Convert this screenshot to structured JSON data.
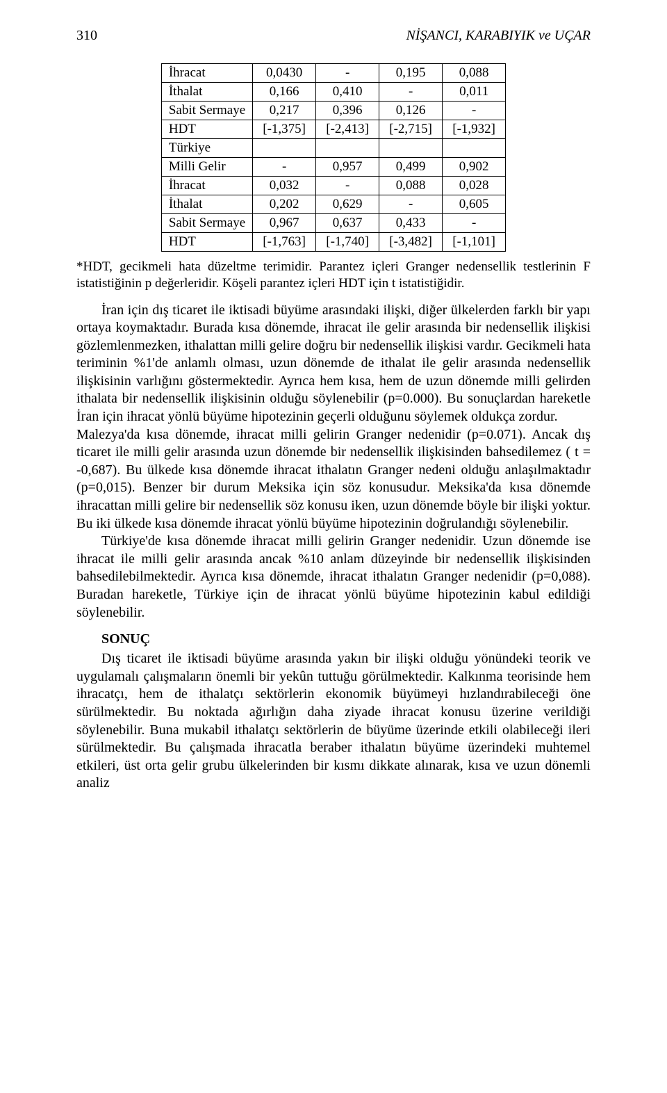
{
  "header": {
    "page_number": "310",
    "running_title": "NİŞANCI, KARABIYIK ve UÇAR"
  },
  "table": {
    "rows": [
      [
        "İhracat",
        "0,0430",
        "-",
        "0,195",
        "0,088"
      ],
      [
        "İthalat",
        "0,166",
        "0,410",
        "-",
        "0,011"
      ],
      [
        "Sabit Sermaye",
        "0,217",
        "0,396",
        "0,126",
        "-"
      ],
      [
        "HDT",
        "[-1,375]",
        "[-2,413]",
        "[-2,715]",
        "[-1,932]"
      ],
      [
        "Türkiye",
        "",
        "",
        "",
        ""
      ],
      [
        "Milli Gelir",
        "-",
        "0,957",
        "0,499",
        "0,902"
      ],
      [
        "İhracat",
        "0,032",
        "-",
        "0,088",
        "0,028"
      ],
      [
        "İthalat",
        "0,202",
        "0,629",
        "-",
        "0,605"
      ],
      [
        "Sabit Sermaye",
        "0,967",
        "0,637",
        "0,433",
        "-"
      ],
      [
        "HDT",
        "[-1,763]",
        "[-1,740]",
        "[-3,482]",
        "[-1,101]"
      ]
    ]
  },
  "footnote": "*HDT, gecikmeli hata düzeltme terimidir. Parantez içleri Granger nedensellik testlerinin F istatistiğinin p değerleridir. Köşeli parantez içleri HDT için t istatistiğidir.",
  "paragraphs": {
    "p1": "İran için dış ticaret ile iktisadi büyüme arasındaki ilişki, diğer ülkelerden farklı bir yapı ortaya koymaktadır. Burada kısa dönemde, ihracat ile gelir arasında bir nedensellik ilişkisi gözlemlenmezken, ithalattan milli gelire doğru bir nedensellik ilişkisi vardır. Gecikmeli hata teriminin %1'de anlamlı olması, uzun dönemde de ithalat ile gelir arasında nedensellik ilişkisinin varlığını göstermektedir. Ayrıca hem kısa, hem de uzun dönemde milli gelirden ithalata bir nedensellik ilişkisinin olduğu söylenebilir (p=0.000). Bu sonuçlardan hareketle İran için ihracat yönlü büyüme hipotezinin geçerli olduğunu söylemek oldukça zordur.",
    "p2": "Malezya'da kısa dönemde, ihracat milli gelirin Granger nedenidir (p=0.071). Ancak dış ticaret ile milli gelir arasında uzun dönemde bir nedensellik ilişkisinden bahsedilemez ( t = -0,687). Bu ülkede kısa dönemde ihracat ithalatın Granger nedeni olduğu anlaşılmaktadır (p=0,015). Benzer bir durum Meksika için söz konusudur. Meksika'da kısa dönemde ihracattan milli gelire bir nedensellik söz konusu iken, uzun dönemde böyle bir ilişki yoktur. Bu iki ülkede kısa dönemde ihracat yönlü büyüme hipotezinin doğrulandığı söylenebilir.",
    "p3": "Türkiye'de kısa dönemde ihracat milli gelirin Granger nedenidir. Uzun dönemde ise ihracat ile milli gelir arasında ancak %10 anlam düzeyinde bir nedensellik ilişkisinden bahsedilebilmektedir. Ayrıca kısa dönemde, ihracat ithalatın Granger nedenidir (p=0,088). Buradan hareketle, Türkiye için de ihracat yönlü büyüme hipotezinin kabul edildiği söylenebilir.",
    "p4": "Dış ticaret ile iktisadi büyüme arasında yakın bir ilişki olduğu yönündeki teorik ve uygulamalı çalışmaların önemli bir yekûn tuttuğu görülmektedir. Kalkınma teorisinde hem ihracatçı, hem de ithalatçı sektörlerin ekonomik büyümeyi hızlandırabileceği öne sürülmektedir. Bu noktada ağırlığın daha ziyade ihracat konusu üzerine verildiği söylenebilir. Buna mukabil ithalatçı sektörlerin de büyüme üzerinde etkili olabileceği ileri sürülmektedir. Bu çalışmada ihracatla beraber ithalatın büyüme üzerindeki muhtemel etkileri, üst orta gelir grubu ülkelerinden bir kısmı dikkate alınarak, kısa ve uzun dönemli analiz"
  },
  "section_heading": "SONUÇ"
}
